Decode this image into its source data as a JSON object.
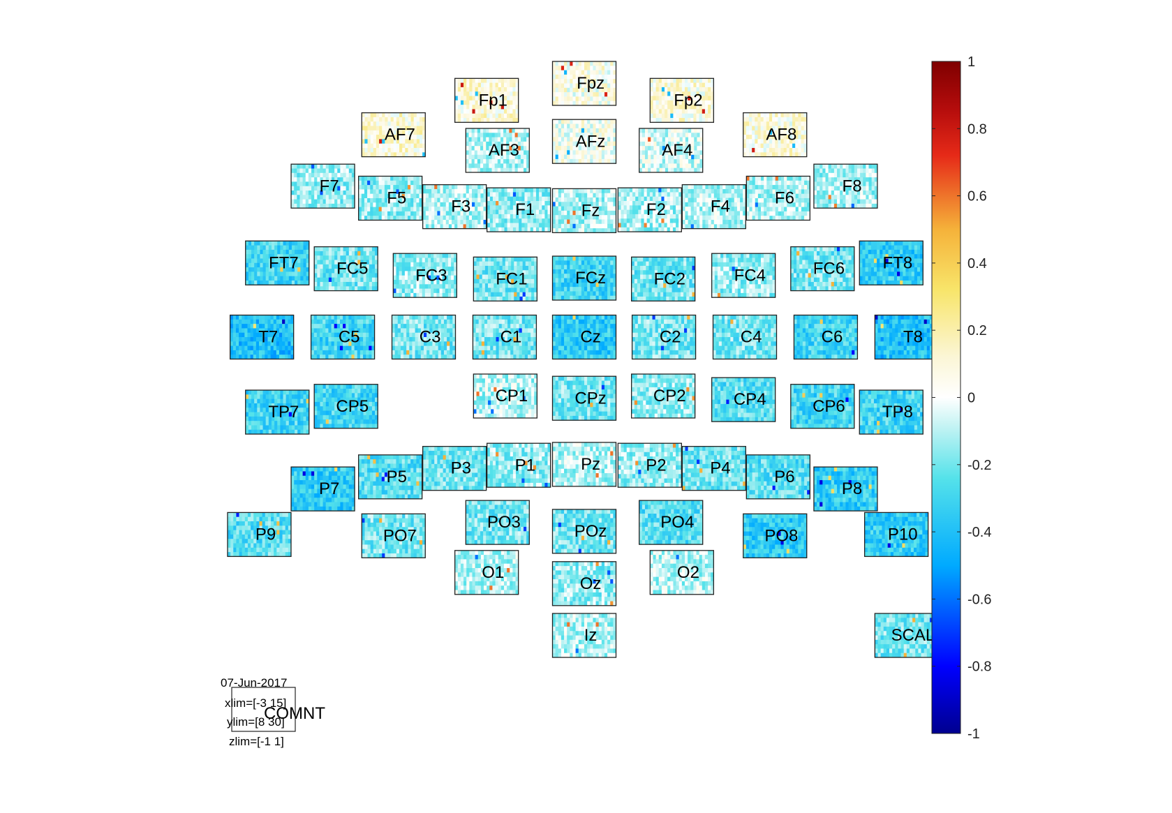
{
  "chart_data": {
    "type": "heatmap",
    "title": "",
    "info": {
      "date": "07-Jun-2017",
      "xlim": "xlim=[-3 15]",
      "ylim": "ylim=[8 30]",
      "zlim": "zlim=[-1 1]",
      "comment_label": "COMNT"
    },
    "colorbar": {
      "colormap": "jet",
      "range": [
        -1,
        1
      ],
      "ticks": [
        1,
        0.8,
        0.6,
        0.4,
        0.2,
        0,
        -0.2,
        -0.4,
        -0.6,
        -0.8,
        -1
      ],
      "tick_labels": [
        "1",
        "0.8",
        "0.6",
        "0.4",
        "0.2",
        "0",
        "-0.2",
        "-0.4",
        "-0.6",
        "-0.8",
        "-1"
      ]
    },
    "channels": [
      {
        "label": "Fpz",
        "col": 0,
        "row": 0,
        "tint": 0.05
      },
      {
        "label": "Fp1",
        "col": -1.52,
        "row": 0.38,
        "tint": 0.1
      },
      {
        "label": "Fp2",
        "col": 1.52,
        "row": 0.38,
        "tint": 0.08
      },
      {
        "label": "AF7",
        "col": -2.97,
        "row": 1.15,
        "tint": 0.1
      },
      {
        "label": "AF3",
        "col": -1.35,
        "row": 1.5,
        "tint": -0.1
      },
      {
        "label": "AFz",
        "col": 0,
        "row": 1.3,
        "tint": 0.02
      },
      {
        "label": "AF4",
        "col": 1.35,
        "row": 1.5,
        "tint": -0.05
      },
      {
        "label": "AF8",
        "col": 2.97,
        "row": 1.15,
        "tint": 0.08
      },
      {
        "label": "F7",
        "col": -4.07,
        "row": 2.3,
        "tint": -0.15
      },
      {
        "label": "F5",
        "col": -3.02,
        "row": 2.57,
        "tint": -0.15
      },
      {
        "label": "F3",
        "col": -2.02,
        "row": 2.76,
        "tint": -0.1
      },
      {
        "label": "F1",
        "col": -1.02,
        "row": 2.83,
        "tint": -0.15
      },
      {
        "label": "Fz",
        "col": 0,
        "row": 2.85,
        "tint": -0.1
      },
      {
        "label": "F2",
        "col": 1.02,
        "row": 2.83,
        "tint": -0.12
      },
      {
        "label": "F4",
        "col": 2.02,
        "row": 2.76,
        "tint": -0.1
      },
      {
        "label": "F6",
        "col": 3.02,
        "row": 2.57,
        "tint": -0.1
      },
      {
        "label": "F8",
        "col": 4.07,
        "row": 2.3,
        "tint": -0.12
      },
      {
        "label": "FT7",
        "col": -4.78,
        "row": 4.02,
        "tint": -0.3
      },
      {
        "label": "FC5",
        "col": -3.71,
        "row": 4.15,
        "tint": -0.2
      },
      {
        "label": "FC3",
        "col": -2.48,
        "row": 4.3,
        "tint": -0.15
      },
      {
        "label": "FC1",
        "col": -1.23,
        "row": 4.38,
        "tint": -0.2
      },
      {
        "label": "FCz",
        "col": 0,
        "row": 4.36,
        "tint": -0.3
      },
      {
        "label": "FC2",
        "col": 1.23,
        "row": 4.38,
        "tint": -0.2
      },
      {
        "label": "FC4",
        "col": 2.48,
        "row": 4.3,
        "tint": -0.15
      },
      {
        "label": "FC6",
        "col": 3.71,
        "row": 4.15,
        "tint": -0.2
      },
      {
        "label": "FT8",
        "col": 4.78,
        "row": 4.02,
        "tint": -0.35
      },
      {
        "label": "T7",
        "col": -5.02,
        "row": 5.68,
        "tint": -0.4
      },
      {
        "label": "C5",
        "col": -3.76,
        "row": 5.68,
        "tint": -0.3
      },
      {
        "label": "C3",
        "col": -2.5,
        "row": 5.68,
        "tint": -0.2
      },
      {
        "label": "C1",
        "col": -1.24,
        "row": 5.68,
        "tint": -0.2
      },
      {
        "label": "Cz",
        "col": 0,
        "row": 5.68,
        "tint": -0.35
      },
      {
        "label": "C2",
        "col": 1.24,
        "row": 5.68,
        "tint": -0.2
      },
      {
        "label": "C4",
        "col": 2.5,
        "row": 5.68,
        "tint": -0.2
      },
      {
        "label": "C6",
        "col": 3.76,
        "row": 5.68,
        "tint": -0.3
      },
      {
        "label": "T8",
        "col": 5.02,
        "row": 5.68,
        "tint": -0.4
      },
      {
        "label": "TP7",
        "col": -4.78,
        "row": 7.36,
        "tint": -0.3
      },
      {
        "label": "CP5",
        "col": -3.71,
        "row": 7.23,
        "tint": -0.3
      },
      {
        "label": "CP1",
        "col": -1.23,
        "row": 7.0,
        "tint": -0.1
      },
      {
        "label": "CPz",
        "col": 0,
        "row": 7.05,
        "tint": -0.2
      },
      {
        "label": "CP2",
        "col": 1.23,
        "row": 7.0,
        "tint": -0.15
      },
      {
        "label": "CP4",
        "col": 2.48,
        "row": 7.08,
        "tint": -0.25
      },
      {
        "label": "CP6",
        "col": 3.71,
        "row": 7.23,
        "tint": -0.3
      },
      {
        "label": "TP8",
        "col": 4.78,
        "row": 7.36,
        "tint": -0.3
      },
      {
        "label": "P7",
        "col": -4.07,
        "row": 9.08,
        "tint": -0.35
      },
      {
        "label": "P5",
        "col": -3.02,
        "row": 8.81,
        "tint": -0.25
      },
      {
        "label": "P3",
        "col": -2.02,
        "row": 8.62,
        "tint": -0.2
      },
      {
        "label": "P1",
        "col": -1.02,
        "row": 8.55,
        "tint": -0.15
      },
      {
        "label": "Pz",
        "col": 0,
        "row": 8.53,
        "tint": -0.1
      },
      {
        "label": "P2",
        "col": 1.02,
        "row": 8.55,
        "tint": -0.15
      },
      {
        "label": "P4",
        "col": 2.02,
        "row": 8.62,
        "tint": -0.2
      },
      {
        "label": "P6",
        "col": 3.02,
        "row": 8.81,
        "tint": -0.25
      },
      {
        "label": "P8",
        "col": 4.07,
        "row": 9.08,
        "tint": -0.35
      },
      {
        "label": "P9",
        "col": -5.06,
        "row": 10.1,
        "tint": -0.25
      },
      {
        "label": "PO7",
        "col": -2.97,
        "row": 10.13,
        "tint": -0.2
      },
      {
        "label": "PO3",
        "col": -1.35,
        "row": 9.83,
        "tint": -0.2
      },
      {
        "label": "POz",
        "col": 0,
        "row": 10.03,
        "tint": -0.2
      },
      {
        "label": "PO4",
        "col": 1.35,
        "row": 9.83,
        "tint": -0.25
      },
      {
        "label": "PO8",
        "col": 2.97,
        "row": 10.13,
        "tint": -0.35
      },
      {
        "label": "P10",
        "col": 4.86,
        "row": 10.1,
        "tint": -0.35
      },
      {
        "label": "O1",
        "col": -1.52,
        "row": 10.95,
        "tint": -0.1
      },
      {
        "label": "Oz",
        "col": 0,
        "row": 11.2,
        "tint": -0.15
      },
      {
        "label": "O2",
        "col": 1.52,
        "row": 10.95,
        "tint": -0.1
      },
      {
        "label": "Iz",
        "col": 0,
        "row": 12.36,
        "tint": -0.1
      },
      {
        "label": "SCAL",
        "col": 5.02,
        "row": 12.36,
        "tint": -0.2
      }
    ]
  }
}
